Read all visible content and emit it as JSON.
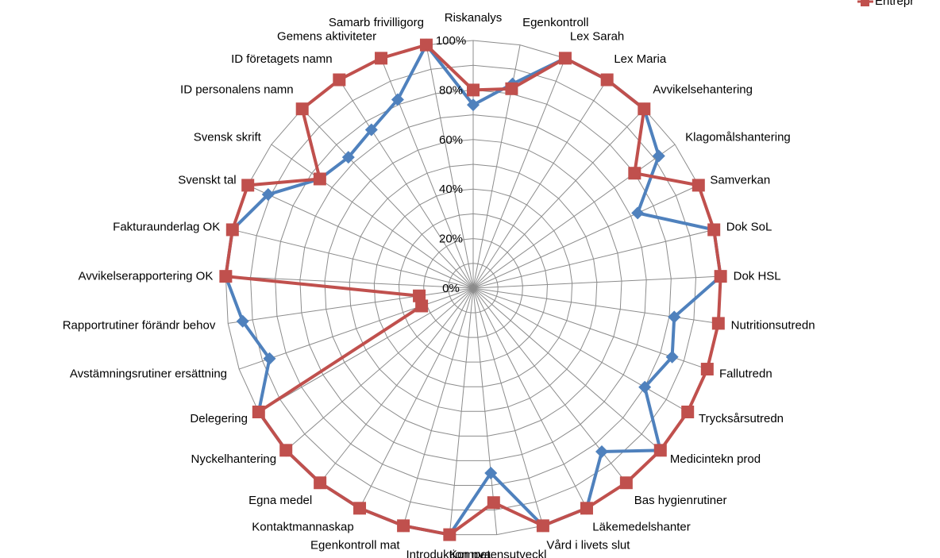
{
  "chart_data": {
    "type": "radar",
    "categories": [
      "Riskanalys",
      "Egenkontroll",
      "Lex Sarah",
      "Lex Maria",
      "Avvikelsehantering",
      "Klagomålshantering",
      "Samverkan",
      "Dok SoL",
      "Dok HSL",
      "Nutritionsutredn",
      "Fallutredn",
      "Trycksårsutredn",
      "Medicintekn prod",
      "Bas hygienrutiner",
      "Läkemedelshanter",
      "Vård i livets slut",
      "Kompetensutveckl",
      "Introduktion nya",
      "Egenkontroll mat",
      "Kontaktmannaskap",
      "Egna medel",
      "Nyckelhantering",
      "Delegering",
      "Avstämningsrutiner ersättning",
      "Rapportrutiner förändr behov",
      "Avvikelserapportering OK",
      "Fakturaunderlag OK",
      "Svenskt tal",
      "Svensk skrift",
      "ID personalens namn",
      "ID företagets namn",
      "Gemens aktiviteter",
      "Samarb frivilligorg"
    ],
    "series": [
      {
        "name": "",
        "color": "#4F81BD",
        "marker": "diamond",
        "values": [
          74,
          84,
          100,
          100,
          100,
          92,
          73,
          100,
          100,
          82,
          85,
          80,
          100,
          84,
          100,
          100,
          75,
          100,
          100,
          100,
          100,
          100,
          100,
          87,
          94,
          100,
          100,
          91,
          76,
          73,
          76,
          82,
          100
        ]
      },
      {
        "name": "Entrepr",
        "color": "#C0504D",
        "marker": "square",
        "values": [
          80,
          82,
          100,
          100,
          100,
          80,
          100,
          100,
          100,
          100,
          100,
          100,
          100,
          100,
          100,
          100,
          87,
          100,
          100,
          100,
          100,
          100,
          100,
          22,
          22,
          100,
          100,
          100,
          76,
          100,
          100,
          100,
          100
        ]
      }
    ],
    "rticks": [
      "0%",
      "20%",
      "40%",
      "60%",
      "80%",
      "100%"
    ],
    "rlim": [
      0,
      100
    ],
    "grid": true,
    "legend": {
      "position": "top-right",
      "entries": [
        "Entrepr"
      ]
    }
  }
}
